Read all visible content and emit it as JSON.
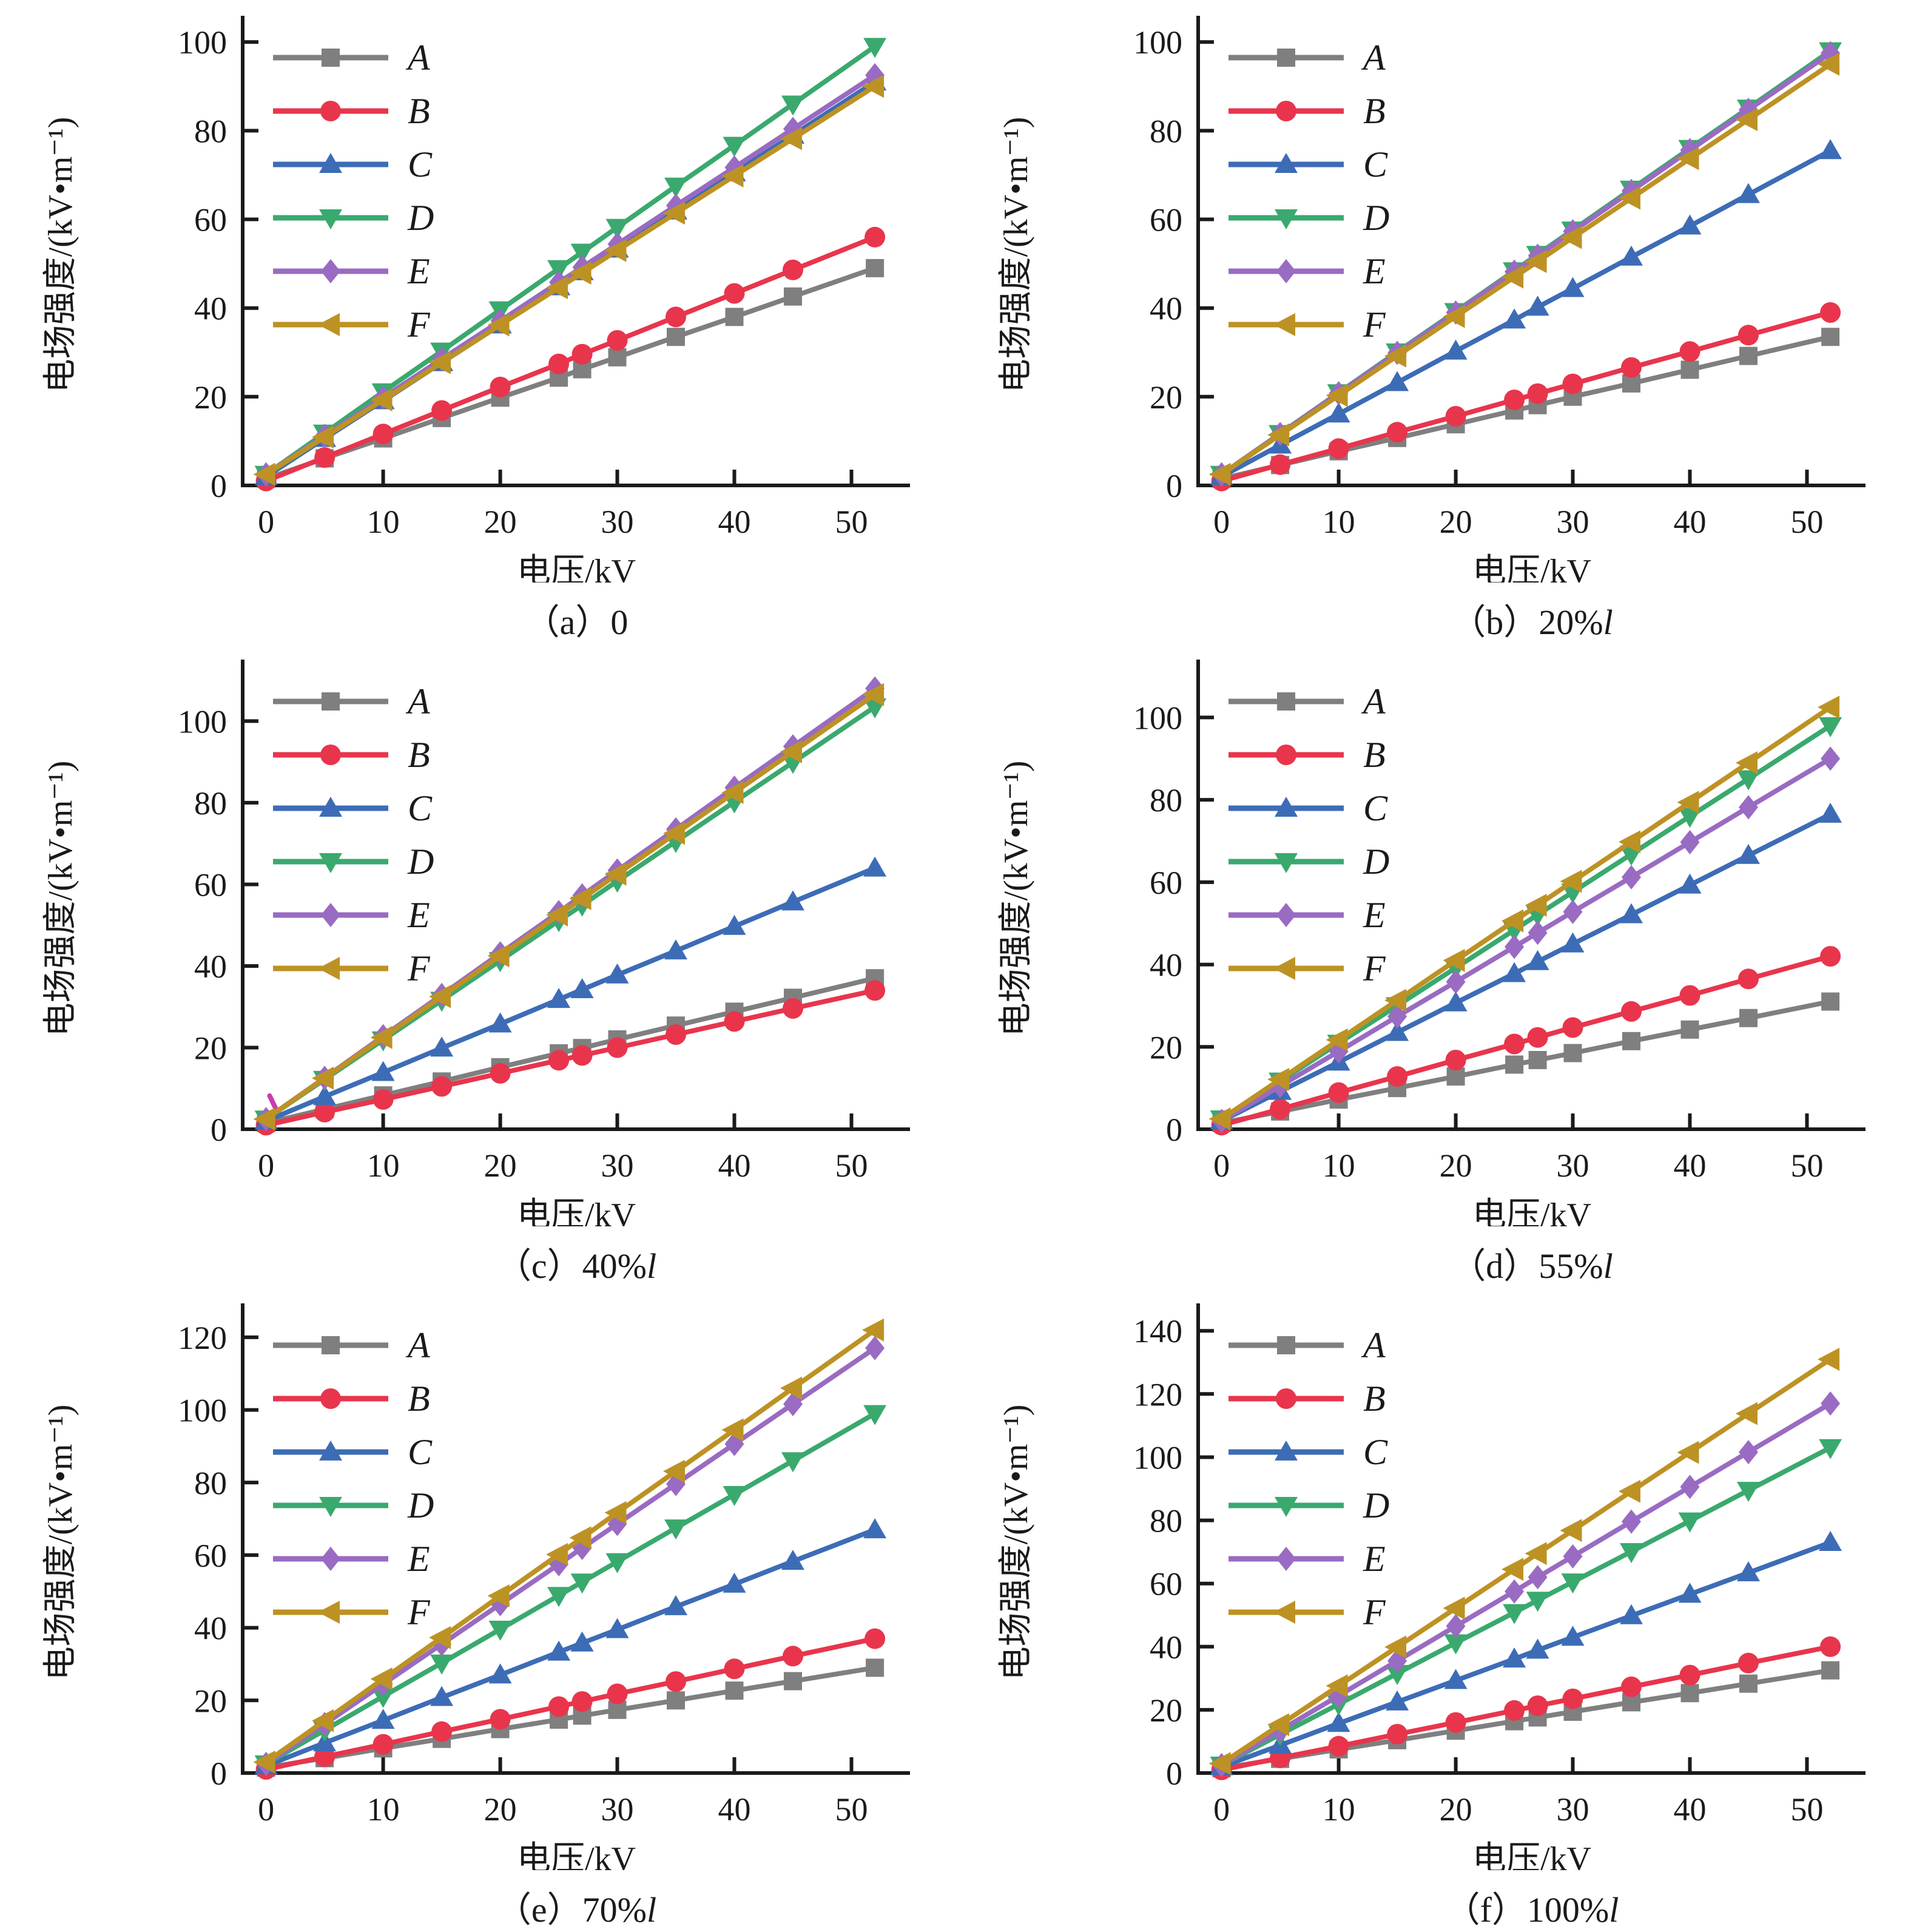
{
  "figure": {
    "xlabel": "电压/kV",
    "ylabel": "电场强度/(kV•m⁻¹)",
    "series_labels": [
      "A",
      "B",
      "C",
      "D",
      "E",
      "F"
    ],
    "colors": {
      "A": "#7f7f7f",
      "B": "#e8354c",
      "C": "#3d6cb6",
      "D": "#3aa96e",
      "E": "#996bc2",
      "F": "#bd9224",
      "axis": "#1a1a1a",
      "background": "#ffffff"
    }
  },
  "chart_data": [
    {
      "type": "line",
      "caption": "（a）0",
      "caption_italic": "",
      "xlabel": "电压/kV",
      "ylabel": "电场强度/(kV•m⁻¹)",
      "x": [
        0,
        5,
        10,
        15,
        20,
        25,
        27,
        30,
        35,
        40,
        45,
        52
      ],
      "xticks": [
        0,
        10,
        20,
        30,
        40,
        50
      ],
      "yticks": [
        0,
        20,
        40,
        60,
        80,
        100
      ],
      "xlim": [
        -2,
        55
      ],
      "ylim": [
        0,
        104
      ],
      "grid": false,
      "legend_position": "upper-left",
      "series": [
        {
          "name": "A",
          "color": "#7f7f7f",
          "marker": "square",
          "values": [
            1.5,
            6.1,
            10.6,
            15.2,
            19.8,
            24.3,
            26.2,
            28.9,
            33.5,
            38.0,
            42.6,
            49.0
          ]
        },
        {
          "name": "B",
          "color": "#e8354c",
          "marker": "circle",
          "values": [
            1.0,
            6.3,
            11.6,
            16.9,
            22.2,
            27.4,
            29.6,
            32.7,
            38.0,
            43.3,
            48.6,
            56.0
          ]
        },
        {
          "name": "C",
          "color": "#3d6cb6",
          "marker": "triangle-up",
          "values": [
            2.0,
            10.6,
            19.1,
            27.7,
            36.2,
            44.8,
            48.2,
            53.3,
            61.9,
            70.5,
            79.0,
            91.0
          ]
        },
        {
          "name": "D",
          "color": "#3aa96e",
          "marker": "triangle-down",
          "values": [
            2.5,
            11.8,
            21.1,
            30.3,
            39.6,
            48.9,
            52.6,
            58.2,
            67.5,
            76.7,
            86.0,
            99.0
          ]
        },
        {
          "name": "E",
          "color": "#996bc2",
          "marker": "diamond",
          "values": [
            2.5,
            11.2,
            19.8,
            28.5,
            37.1,
            45.8,
            49.2,
            54.4,
            63.1,
            71.7,
            80.4,
            92.5
          ]
        },
        {
          "name": "F",
          "color": "#bd9224",
          "marker": "triangle-left",
          "values": [
            2.5,
            10.9,
            19.3,
            27.7,
            36.2,
            44.6,
            47.9,
            53.0,
            61.4,
            69.8,
            78.2,
            90.0
          ]
        }
      ]
    },
    {
      "type": "line",
      "caption": "（b）20%",
      "caption_italic": "l",
      "xlabel": "电压/kV",
      "ylabel": "电场强度/(kV•m⁻¹)",
      "x": [
        0,
        5,
        10,
        15,
        20,
        25,
        27,
        30,
        35,
        40,
        45,
        52
      ],
      "xticks": [
        0,
        10,
        20,
        30,
        40,
        50
      ],
      "yticks": [
        0,
        20,
        40,
        60,
        80,
        100
      ],
      "xlim": [
        -2,
        55
      ],
      "ylim": [
        0,
        104
      ],
      "grid": false,
      "legend_position": "upper-left",
      "series": [
        {
          "name": "A",
          "color": "#7f7f7f",
          "marker": "square",
          "values": [
            1.5,
            4.6,
            7.7,
            10.7,
            13.8,
            16.9,
            18.1,
            20.0,
            23.0,
            26.1,
            29.2,
            33.5
          ]
        },
        {
          "name": "B",
          "color": "#e8354c",
          "marker": "circle",
          "values": [
            1.0,
            4.7,
            8.3,
            12.0,
            15.6,
            19.3,
            20.7,
            22.9,
            26.6,
            30.2,
            33.9,
            39.0
          ]
        },
        {
          "name": "C",
          "color": "#3d6cb6",
          "marker": "triangle-up",
          "values": [
            2.0,
            9.1,
            16.1,
            23.2,
            30.3,
            37.3,
            40.2,
            44.4,
            51.5,
            58.5,
            65.6,
            75.5
          ]
        },
        {
          "name": "D",
          "color": "#3aa96e",
          "marker": "triangle-down",
          "values": [
            2.5,
            11.7,
            20.9,
            30.1,
            39.2,
            48.4,
            52.1,
            57.6,
            66.8,
            76.0,
            85.1,
            98.0
          ]
        },
        {
          "name": "E",
          "color": "#996bc2",
          "marker": "diamond",
          "values": [
            2.5,
            11.6,
            20.8,
            29.9,
            39.0,
            48.2,
            51.8,
            57.3,
            66.4,
            75.6,
            84.7,
            97.5
          ]
        },
        {
          "name": "F",
          "color": "#bd9224",
          "marker": "triangle-left",
          "values": [
            2.5,
            11.4,
            20.3,
            29.2,
            38.1,
            47.0,
            50.5,
            55.9,
            64.8,
            73.7,
            82.5,
            95.0
          ]
        }
      ]
    },
    {
      "type": "line",
      "caption": "（c）40%",
      "caption_italic": "l",
      "xlabel": "电压/kV",
      "ylabel": "电场强度/(kV•m⁻¹)",
      "x": [
        0,
        5,
        10,
        15,
        20,
        25,
        27,
        30,
        35,
        40,
        45,
        52
      ],
      "xticks": [
        0,
        10,
        20,
        30,
        40,
        50
      ],
      "yticks": [
        0,
        20,
        40,
        60,
        80,
        100
      ],
      "xlim": [
        -2,
        55
      ],
      "ylim": [
        0,
        113
      ],
      "grid": false,
      "legend_position": "upper-left",
      "artifact": {
        "x1": 0.3,
        "y1": 8.2,
        "x2": 1.3,
        "y2": 2.2,
        "color": "#c93caf"
      },
      "series": [
        {
          "name": "A",
          "color": "#7f7f7f",
          "marker": "square",
          "values": [
            1.5,
            4.9,
            8.3,
            11.7,
            15.2,
            18.6,
            19.9,
            22.0,
            25.4,
            28.8,
            32.2,
            37.0
          ]
        },
        {
          "name": "B",
          "color": "#e8354c",
          "marker": "circle",
          "values": [
            1.0,
            4.2,
            7.3,
            10.5,
            13.7,
            16.9,
            18.1,
            20.0,
            23.2,
            26.4,
            29.6,
            34.0
          ]
        },
        {
          "name": "C",
          "color": "#3d6cb6",
          "marker": "triangle-up",
          "values": [
            2.0,
            8.0,
            13.9,
            19.9,
            25.8,
            31.8,
            34.2,
            37.8,
            43.7,
            49.7,
            55.7,
            64.0
          ]
        },
        {
          "name": "D",
          "color": "#3aa96e",
          "marker": "triangle-down",
          "values": [
            2.5,
            12.2,
            21.9,
            31.6,
            41.3,
            51.1,
            54.9,
            60.8,
            70.5,
            80.2,
            89.9,
            103.5
          ]
        },
        {
          "name": "E",
          "color": "#996bc2",
          "marker": "diamond",
          "values": [
            2.5,
            12.6,
            22.8,
            32.9,
            43.1,
            53.2,
            57.3,
            63.4,
            73.5,
            83.7,
            93.8,
            108.0
          ]
        },
        {
          "name": "F",
          "color": "#bd9224",
          "marker": "triangle-left",
          "values": [
            2.5,
            12.5,
            22.5,
            32.5,
            42.5,
            52.5,
            56.5,
            62.5,
            72.5,
            82.5,
            92.5,
            106.5
          ]
        }
      ]
    },
    {
      "type": "line",
      "caption": "（d）55%",
      "caption_italic": "l",
      "xlabel": "电压/kV",
      "ylabel": "电场强度/(kV•m⁻¹)",
      "x": [
        0,
        5,
        10,
        15,
        20,
        25,
        27,
        30,
        35,
        40,
        45,
        52
      ],
      "xticks": [
        0,
        10,
        20,
        30,
        40,
        50
      ],
      "yticks": [
        0,
        20,
        40,
        60,
        80,
        100
      ],
      "xlim": [
        -2,
        55
      ],
      "ylim": [
        0,
        112
      ],
      "grid": false,
      "legend_position": "upper-left",
      "series": [
        {
          "name": "A",
          "color": "#7f7f7f",
          "marker": "square",
          "values": [
            1.5,
            4.3,
            7.2,
            10.0,
            12.8,
            15.7,
            16.8,
            18.5,
            21.4,
            24.2,
            27.0,
            31.0
          ]
        },
        {
          "name": "B",
          "color": "#e8354c",
          "marker": "circle",
          "values": [
            1.0,
            4.9,
            8.9,
            12.8,
            16.8,
            20.7,
            22.3,
            24.7,
            28.6,
            32.5,
            36.5,
            42.0
          ]
        },
        {
          "name": "C",
          "color": "#3d6cb6",
          "marker": "triangle-up",
          "values": [
            2.0,
            9.2,
            16.3,
            23.5,
            30.7,
            37.8,
            40.7,
            45.0,
            52.1,
            59.3,
            66.5,
            76.5
          ]
        },
        {
          "name": "D",
          "color": "#3aa96e",
          "marker": "triangle-down",
          "values": [
            2.5,
            11.7,
            20.9,
            30.0,
            39.2,
            48.4,
            52.1,
            57.6,
            66.8,
            76.0,
            85.1,
            98.0
          ]
        },
        {
          "name": "E",
          "color": "#996bc2",
          "marker": "diamond",
          "values": [
            2.0,
            10.5,
            18.9,
            27.4,
            35.8,
            44.3,
            47.7,
            52.8,
            61.2,
            69.7,
            78.2,
            90.0
          ]
        },
        {
          "name": "F",
          "color": "#bd9224",
          "marker": "triangle-left",
          "values": [
            2.5,
            12.1,
            21.7,
            31.3,
            41.0,
            50.6,
            54.4,
            60.2,
            69.8,
            79.4,
            89.0,
            102.5
          ]
        }
      ]
    },
    {
      "type": "line",
      "caption": "（e）70%",
      "caption_italic": "l",
      "xlabel": "电压/kV",
      "ylabel": "电场强度/(kV•m⁻¹)",
      "x": [
        0,
        5,
        10,
        15,
        20,
        25,
        27,
        30,
        35,
        40,
        45,
        52
      ],
      "xticks": [
        0,
        10,
        20,
        30,
        40,
        50
      ],
      "yticks": [
        0,
        20,
        40,
        60,
        80,
        100,
        120
      ],
      "xlim": [
        -2,
        55
      ],
      "ylim": [
        0,
        127
      ],
      "grid": false,
      "legend_position": "upper-left",
      "series": [
        {
          "name": "A",
          "color": "#7f7f7f",
          "marker": "square",
          "values": [
            1.5,
            4.1,
            6.8,
            9.4,
            12.1,
            14.7,
            15.8,
            17.4,
            20.0,
            22.7,
            25.3,
            29.0
          ]
        },
        {
          "name": "B",
          "color": "#e8354c",
          "marker": "circle",
          "values": [
            1.0,
            4.5,
            7.9,
            11.4,
            14.8,
            18.3,
            19.7,
            21.8,
            25.2,
            28.7,
            32.2,
            37.0
          ]
        },
        {
          "name": "C",
          "color": "#3d6cb6",
          "marker": "triangle-up",
          "values": [
            2.0,
            8.3,
            14.5,
            20.8,
            27.0,
            33.3,
            35.8,
            39.5,
            45.8,
            52.0,
            58.3,
            67.0
          ]
        },
        {
          "name": "D",
          "color": "#3aa96e",
          "marker": "triangle-down",
          "values": [
            2.5,
            11.8,
            21.1,
            30.3,
            39.6,
            48.9,
            52.6,
            58.2,
            67.5,
            76.7,
            86.0,
            99.0
          ]
        },
        {
          "name": "E",
          "color": "#996bc2",
          "marker": "diamond",
          "values": [
            2.5,
            13.5,
            24.5,
            35.5,
            46.5,
            57.5,
            62.0,
            68.6,
            79.6,
            90.6,
            101.6,
            117.0
          ]
        },
        {
          "name": "F",
          "color": "#bd9224",
          "marker": "triangle-left",
          "values": [
            3.0,
            14.4,
            25.9,
            37.3,
            48.8,
            60.2,
            64.8,
            71.7,
            83.1,
            94.5,
            106.0,
            122.0
          ]
        }
      ]
    },
    {
      "type": "line",
      "caption": "（f）100%",
      "caption_italic": "l",
      "xlabel": "电压/kV",
      "ylabel": "电场强度/(kV•m⁻¹)",
      "x": [
        0,
        5,
        10,
        15,
        20,
        25,
        27,
        30,
        35,
        40,
        45,
        52
      ],
      "xticks": [
        0,
        10,
        20,
        30,
        40,
        50
      ],
      "yticks": [
        0,
        20,
        40,
        60,
        80,
        100,
        120,
        140
      ],
      "xlim": [
        -2,
        55
      ],
      "ylim": [
        0,
        146
      ],
      "grid": false,
      "legend_position": "upper-left",
      "series": [
        {
          "name": "A",
          "color": "#7f7f7f",
          "marker": "square",
          "values": [
            1.5,
            4.5,
            7.5,
            10.4,
            13.4,
            16.4,
            17.6,
            19.4,
            22.4,
            25.3,
            28.3,
            32.5
          ]
        },
        {
          "name": "B",
          "color": "#e8354c",
          "marker": "circle",
          "values": [
            1.0,
            4.8,
            8.5,
            12.3,
            16.0,
            19.8,
            21.3,
            23.5,
            27.3,
            31.0,
            34.8,
            40.0
          ]
        },
        {
          "name": "C",
          "color": "#3d6cb6",
          "marker": "triangle-up",
          "values": [
            2.0,
            8.8,
            15.7,
            22.5,
            29.3,
            36.1,
            38.9,
            43.0,
            49.8,
            56.6,
            63.4,
            73.0
          ]
        },
        {
          "name": "D",
          "color": "#3aa96e",
          "marker": "triangle-down",
          "values": [
            2.5,
            12.2,
            21.8,
            31.5,
            41.2,
            50.8,
            54.7,
            60.5,
            70.1,
            79.8,
            89.5,
            103.0
          ]
        },
        {
          "name": "E",
          "color": "#996bc2",
          "marker": "diamond",
          "values": [
            2.5,
            13.5,
            24.5,
            35.5,
            46.5,
            57.5,
            62.0,
            68.6,
            79.6,
            90.6,
            101.6,
            117.0
          ]
        },
        {
          "name": "F",
          "color": "#bd9224",
          "marker": "triangle-left",
          "values": [
            3.0,
            15.3,
            27.6,
            39.9,
            52.2,
            64.5,
            69.5,
            76.8,
            89.2,
            101.5,
            113.8,
            131.0
          ]
        }
      ]
    }
  ]
}
